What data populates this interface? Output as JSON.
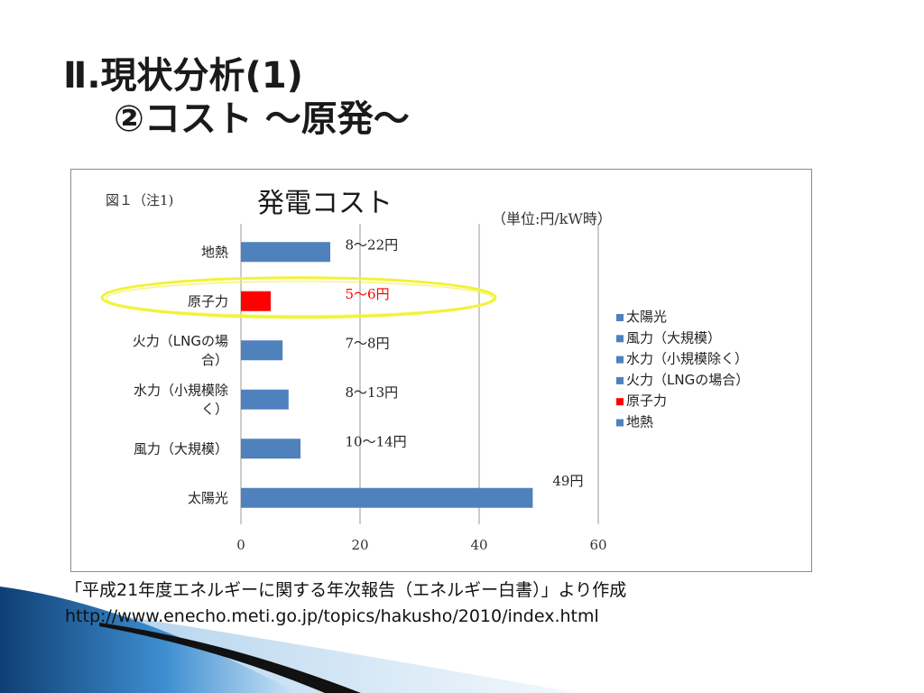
{
  "slide": {
    "title_line1": "Ⅱ.現状分析(1)",
    "title_line2": "②コスト ～原発～"
  },
  "chart_data": {
    "type": "bar",
    "orientation": "horizontal",
    "figure_label": "図１（注1)",
    "title": "発電コスト",
    "unit": "（単位:円/kW時）",
    "categories": [
      "地熱",
      "原子力",
      "火力（LNGの場合）",
      "水力（小規模除く）",
      "風力（大規模）",
      "太陽光"
    ],
    "category_label_lines": [
      [
        "地熱"
      ],
      [
        "原子力"
      ],
      [
        "火力（LNGの場",
        "合）"
      ],
      [
        "水力（小規模除",
        "く）"
      ],
      [
        "風力（大規模）"
      ],
      [
        "太陽光"
      ]
    ],
    "values": [
      15,
      5,
      7,
      8,
      10,
      49
    ],
    "data_labels": [
      "8～22円",
      "5～6円",
      "7～8円",
      "8～13円",
      "10～14円",
      "49円"
    ],
    "colors": [
      "#4f81bd",
      "#ff0000",
      "#4f81bd",
      "#4f81bd",
      "#4f81bd",
      "#4f81bd"
    ],
    "xlim": [
      0,
      60
    ],
    "xticks": [
      "0",
      "20",
      "40",
      "60"
    ],
    "grid": "vertical",
    "legend_position": "right",
    "legend": [
      {
        "label": "太陽光",
        "color": "#4f81bd"
      },
      {
        "label": "風力（大規模）",
        "color": "#4f81bd"
      },
      {
        "label": "水力（小規模除く）",
        "color": "#4f81bd"
      },
      {
        "label": "火力（LNGの場合）",
        "color": "#4f81bd"
      },
      {
        "label": "原子力",
        "color": "#ff0000"
      },
      {
        "label": "地熱",
        "color": "#4f81bd"
      }
    ],
    "highlight": {
      "category": "原子力",
      "color": "#f2f23a"
    }
  },
  "source": {
    "line1": "「平成21年度エネルギーに関する年次報告（エネルギー白書）」より作成",
    "line2": "http://www.enecho.meti.go.jp/topics/hakusho/2010/index.html"
  }
}
